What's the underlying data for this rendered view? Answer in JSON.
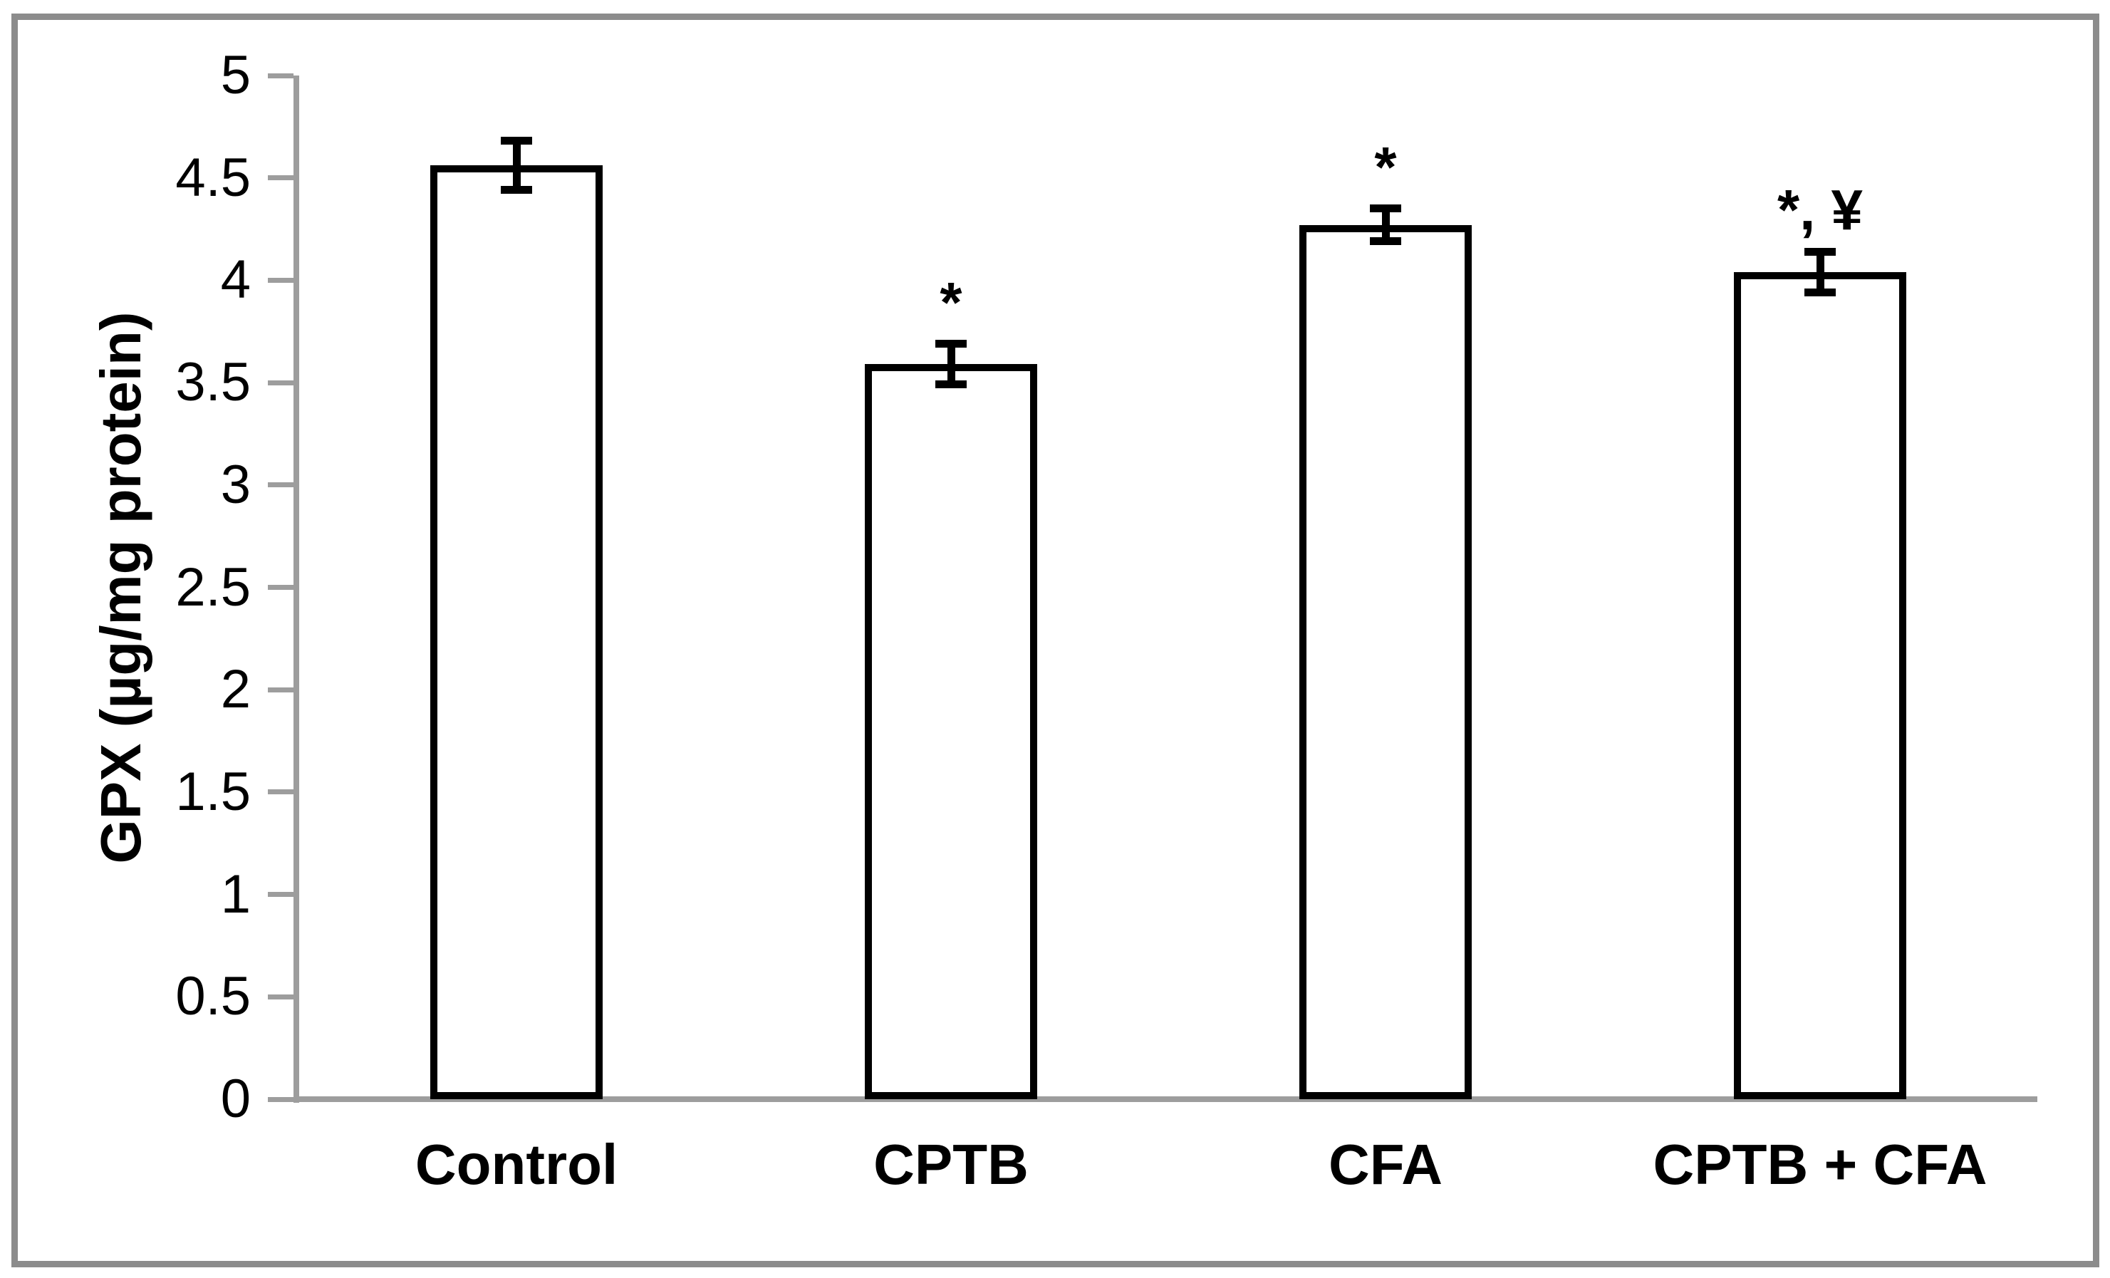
{
  "chart_data": {
    "type": "bar",
    "title": "",
    "xlabel": "",
    "ylabel": "GPX (µg/mg protein)",
    "categories": [
      "Control",
      "CPTB",
      "CFA",
      "CPTB + CFA"
    ],
    "values": [
      4.56,
      3.59,
      4.27,
      4.04
    ],
    "error_bars": [
      0.12,
      0.1,
      0.08,
      0.1
    ],
    "annotations": [
      "",
      "*",
      "*",
      "*, ¥"
    ],
    "ylim": [
      0,
      5
    ],
    "ytick_step": 0.5,
    "yticks": [
      "0",
      "0.5",
      "1",
      "1.5",
      "2",
      "2.5",
      "3",
      "3.5",
      "4",
      "4.5",
      "5"
    ],
    "grid": false,
    "legend": false,
    "colors": {
      "bar_fill": "#ffffff",
      "bar_border": "#000000",
      "error_bar": "#000000",
      "axis_line": "#9d9d9d",
      "text": "#000000",
      "frame_border": "#8c8c8c",
      "background": "#ffffff"
    }
  }
}
